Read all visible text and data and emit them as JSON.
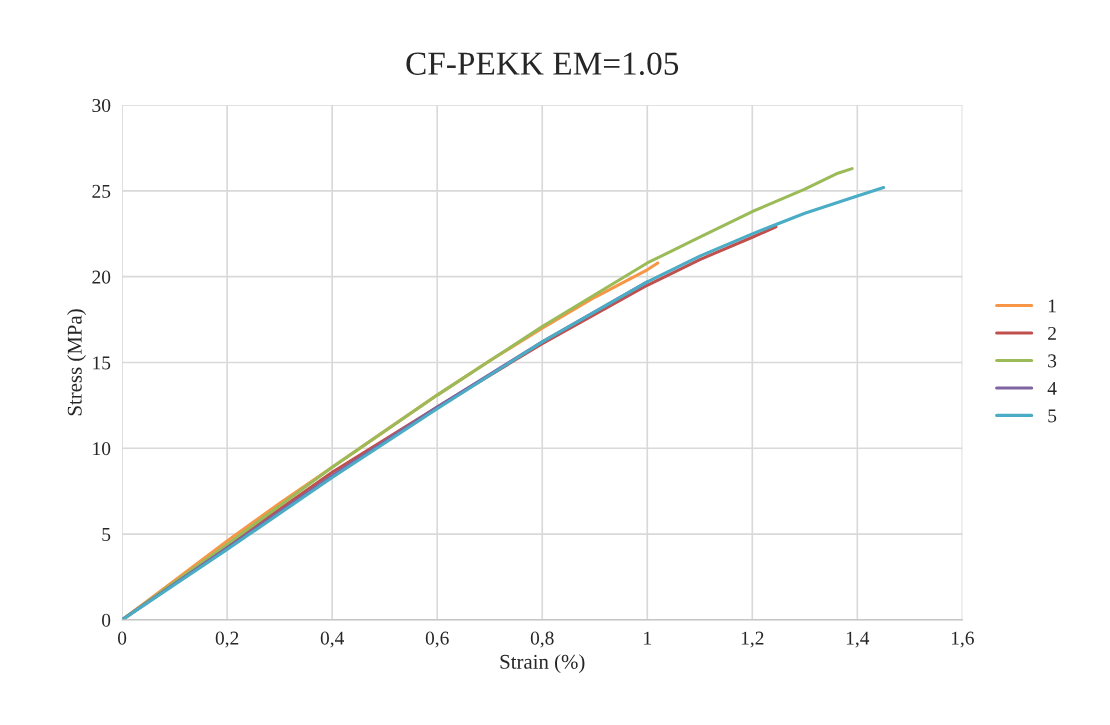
{
  "chart_data": {
    "type": "line",
    "title": "CF-PEKK EM=1.05",
    "xlabel": "Strain (%)",
    "ylabel": "Stress (MPa)",
    "xlim": [
      0,
      1.6
    ],
    "xticks": [
      0,
      {
        "value": 0.2,
        "label": "0,2"
      },
      {
        "value": 0.4,
        "label": "0,4"
      },
      {
        "value": 0.6,
        "label": "0,6"
      },
      {
        "value": 0.8,
        "label": "0,8"
      },
      1,
      {
        "value": 1.2,
        "label": "1,2"
      },
      {
        "value": 1.4,
        "label": "1,4"
      },
      {
        "value": 1.6,
        "label": "1,6"
      }
    ],
    "ylim": [
      0,
      30
    ],
    "yticks": [
      0,
      5,
      10,
      15,
      20,
      25,
      30
    ],
    "grid": true,
    "legend": "right",
    "marker": "none",
    "line_style": "solid",
    "series": [
      {
        "name": "1",
        "color": "#f79646",
        "x": [
          0,
          0.1,
          0.2,
          0.3,
          0.4,
          0.5,
          0.6,
          0.7,
          0.8,
          0.9,
          1.0,
          1.02
        ],
        "values": [
          0,
          2.3,
          4.6,
          6.8,
          8.9,
          11.0,
          13.1,
          15.1,
          17.0,
          18.8,
          20.4,
          20.8
        ]
      },
      {
        "name": "2",
        "color": "#c0504d",
        "x": [
          0,
          0.2,
          0.4,
          0.6,
          0.8,
          1.0,
          1.1,
          1.2,
          1.245
        ],
        "values": [
          0,
          4.3,
          8.6,
          12.4,
          16.1,
          19.5,
          21.0,
          22.3,
          22.9
        ]
      },
      {
        "name": "3",
        "color": "#9bbb59",
        "x": [
          0,
          0.2,
          0.4,
          0.6,
          0.8,
          1.0,
          1.1,
          1.2,
          1.3,
          1.36,
          1.39
        ],
        "values": [
          0,
          4.4,
          8.9,
          13.1,
          17.1,
          20.8,
          22.3,
          23.8,
          25.1,
          26.0,
          26.3
        ]
      },
      {
        "name": "4",
        "color": "#8064a2",
        "x": [
          0,
          0.2,
          0.4,
          0.6,
          0.8,
          1.0
        ],
        "values": [
          0,
          4.2,
          8.4,
          12.4,
          16.2,
          19.7
        ]
      },
      {
        "name": "5",
        "color": "#4bacc6",
        "x": [
          0,
          0.2,
          0.4,
          0.6,
          0.8,
          1.0,
          1.1,
          1.2,
          1.3,
          1.4,
          1.45
        ],
        "values": [
          0,
          4.1,
          8.3,
          12.3,
          16.2,
          19.7,
          21.2,
          22.5,
          23.7,
          24.7,
          25.2
        ]
      }
    ]
  }
}
